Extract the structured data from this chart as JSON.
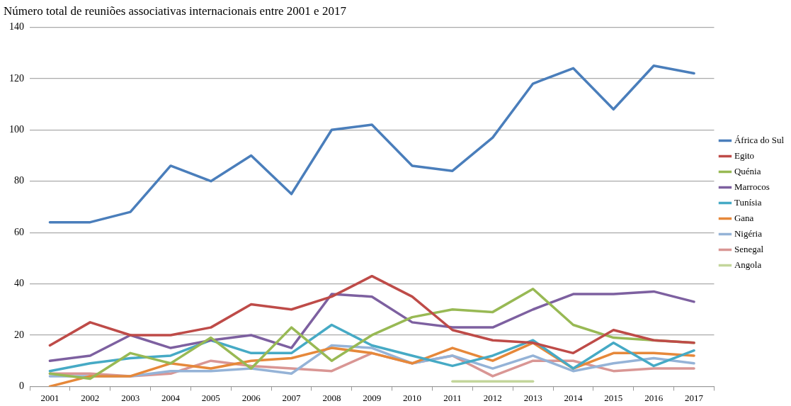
{
  "chart_data": {
    "type": "line",
    "title": "Número total de reuniões associativas internacionais entre 2001 e 2017",
    "categories": [
      "2001",
      "2002",
      "2003",
      "2004",
      "2005",
      "2006",
      "2007",
      "2008",
      "2009",
      "2010",
      "2011",
      "2012",
      "2013",
      "2014",
      "2015",
      "2016",
      "2017"
    ],
    "series": [
      {
        "name": "África do Sul",
        "color": "#4a7ebb",
        "values": [
          64,
          64,
          68,
          86,
          80,
          90,
          75,
          100,
          102,
          86,
          84,
          97,
          118,
          124,
          108,
          125,
          122
        ]
      },
      {
        "name": "Egito",
        "color": "#be4b48",
        "values": [
          16,
          25,
          20,
          20,
          23,
          32,
          30,
          35,
          43,
          35,
          22,
          18,
          17,
          13,
          22,
          18,
          17
        ]
      },
      {
        "name": "Quénia",
        "color": "#98b954",
        "values": [
          5,
          3,
          13,
          9,
          19,
          7,
          23,
          10,
          20,
          27,
          30,
          29,
          38,
          24,
          19,
          18,
          17
        ]
      },
      {
        "name": "Marrocos",
        "color": "#7d60a0",
        "values": [
          10,
          12,
          20,
          15,
          18,
          20,
          15,
          36,
          35,
          25,
          23,
          23,
          30,
          36,
          36,
          37,
          33
        ]
      },
      {
        "name": "Tunísia",
        "color": "#46aac5",
        "values": [
          6,
          9,
          11,
          12,
          18,
          13,
          13,
          24,
          16,
          12,
          8,
          12,
          18,
          7,
          17,
          8,
          14
        ]
      },
      {
        "name": "Gana",
        "color": "#e6883a",
        "values": [
          0,
          4,
          4,
          9,
          7,
          10,
          11,
          15,
          13,
          9,
          15,
          10,
          17,
          7,
          13,
          13,
          12
        ]
      },
      {
        "name": "Nigéria",
        "color": "#95b3d7",
        "values": [
          4,
          4,
          4,
          6,
          6,
          7,
          5,
          16,
          15,
          9,
          12,
          7,
          12,
          6,
          9,
          11,
          9
        ]
      },
      {
        "name": "Senegal",
        "color": "#d99694",
        "values": [
          5,
          5,
          4,
          5,
          10,
          8,
          7,
          6,
          13,
          9,
          12,
          4,
          10,
          10,
          6,
          7,
          7
        ]
      },
      {
        "name": "Angola",
        "color": "#c3d69b",
        "values": [
          null,
          null,
          null,
          null,
          null,
          null,
          null,
          null,
          null,
          null,
          2,
          2,
          2,
          null,
          null,
          null,
          null
        ]
      }
    ],
    "ylim": [
      0,
      140
    ],
    "yticks": [
      0,
      20,
      40,
      60,
      80,
      100,
      120,
      140
    ],
    "grid": "y",
    "legend": "right",
    "marker": "none",
    "line_style": "solid"
  }
}
